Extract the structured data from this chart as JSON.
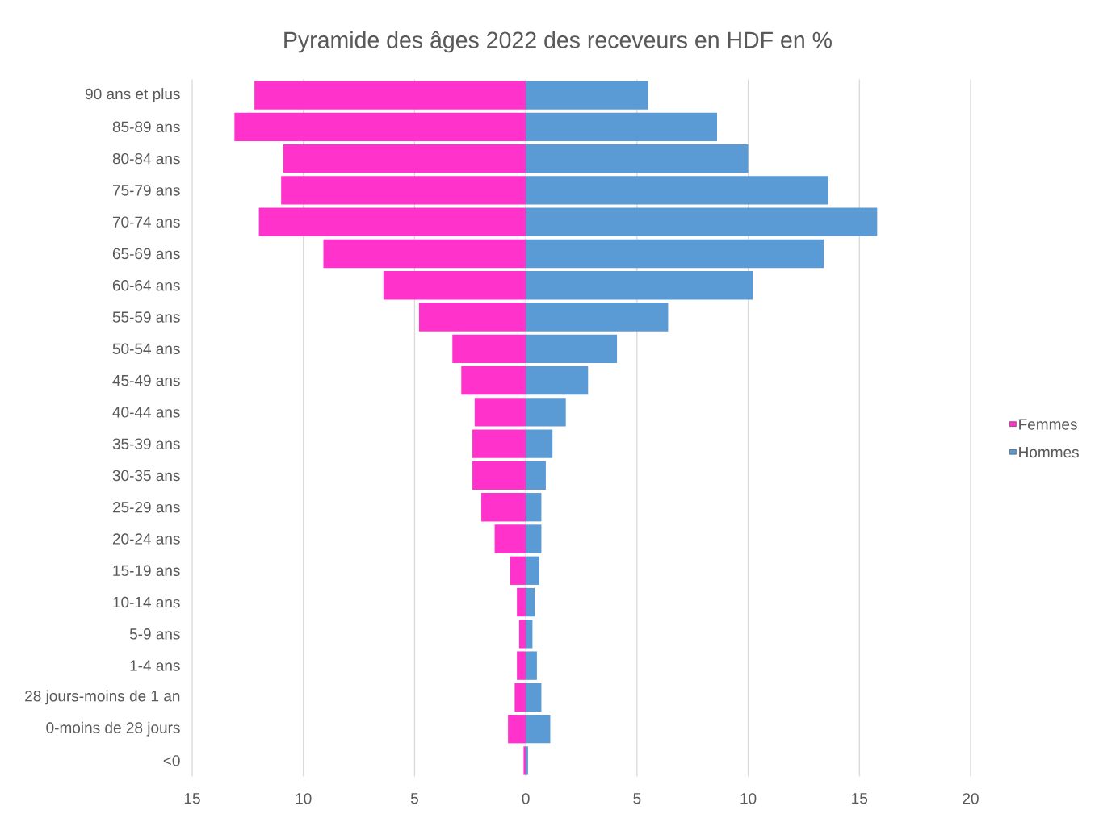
{
  "chart_data": {
    "type": "bar",
    "orientation": "horizontal",
    "stacked": true,
    "title": "Pyramide des âges 2022 des receveurs en HDF en %",
    "categories": [
      "90 ans et plus",
      "85-89 ans",
      "80-84 ans",
      "75-79 ans",
      "70-74 ans",
      "65-69 ans",
      "60-64 ans",
      "55-59 ans",
      "50-54 ans",
      "45-49 ans",
      "40-44 ans",
      "35-39 ans",
      "30-35 ans",
      "25-29 ans",
      "20-24 ans",
      "15-19 ans",
      "10-14 ans",
      "5-9 ans",
      "1-4 ans",
      "28 jours-moins de 1 an",
      "0-moins de 28 jours",
      "<0"
    ],
    "series": [
      {
        "name": "Femmes",
        "color": "#ff33cc",
        "values": [
          -12.2,
          -13.1,
          -10.9,
          -11.0,
          -12.0,
          -9.1,
          -6.4,
          -4.8,
          -3.3,
          -2.9,
          -2.3,
          -2.4,
          -2.4,
          -2.0,
          -1.4,
          -0.7,
          -0.4,
          -0.3,
          -0.4,
          -0.5,
          -0.8,
          -0.1
        ]
      },
      {
        "name": "Hommes",
        "color": "#5b9bd5",
        "values": [
          5.5,
          8.6,
          10.0,
          13.6,
          15.8,
          13.4,
          10.2,
          6.4,
          4.1,
          2.8,
          1.8,
          1.2,
          0.9,
          0.7,
          0.7,
          0.6,
          0.4,
          0.3,
          0.5,
          0.7,
          1.1,
          0.1
        ]
      }
    ],
    "xlim": [
      -15,
      20
    ],
    "xticks": [
      {
        "value": -15,
        "label": "15"
      },
      {
        "value": -10,
        "label": "10"
      },
      {
        "value": -5,
        "label": "5"
      },
      0,
      5,
      10,
      15,
      20
    ],
    "grid": "x",
    "legend": "right"
  }
}
